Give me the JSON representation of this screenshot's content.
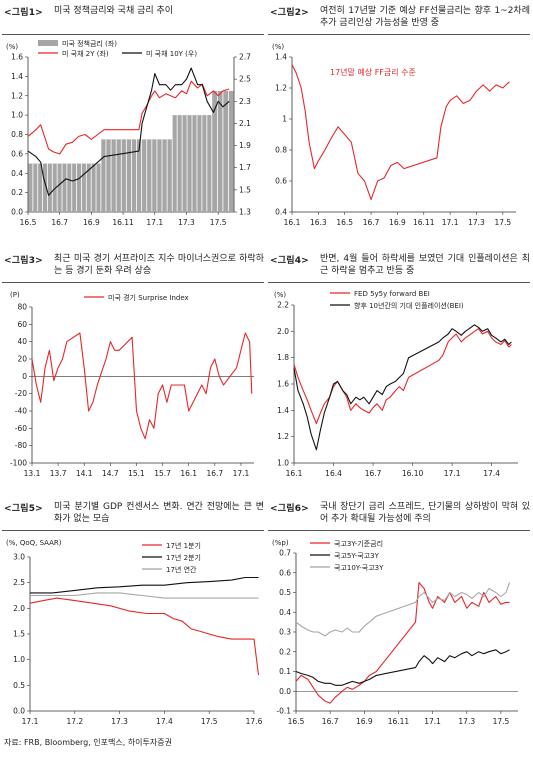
{
  "source": "자료: FRB, Bloomberg, 인포맥스, 하이투자증권",
  "figures": [
    {
      "label": "<그림1>",
      "title": "미국 정책금리와 국채 금리 추이"
    },
    {
      "label": "<그림2>",
      "title": "여전히 17년말 기준 예상 FF선물금리는 향후 1~2차례 추가 금리인상 가능성을 반영 중"
    },
    {
      "label": "<그림3>",
      "title": "최근 미국 경기 서프라이즈 지수 마이너스권으로 하락하는 등 경기 둔화 우려 상승"
    },
    {
      "label": "<그림4>",
      "title": "반면, 4월 들어 하락세를 보였던 기대 인플레이션은 최근 하락을 멈추고 반등 중"
    },
    {
      "label": "<그림5>",
      "title": "미국 분기별 GDP 컨센서스 변화. 연간 전망에는 큰 변화가 없는 모습"
    },
    {
      "label": "<그림6>",
      "title": "국내 장단기 금리 스프레드, 단기물의 상하방이 막혀 있어 추가 확대될 가능성에 주의"
    }
  ],
  "chart_data": [
    {
      "type": "bar+line",
      "unit_left": "(%)",
      "yleft": [
        0.0,
        1.6
      ],
      "yleft_ticks": [
        "0.0",
        "0.2",
        "0.4",
        "0.6",
        "0.8",
        "1.0",
        "1.2",
        "1.4",
        "1.6"
      ],
      "yright": [
        1.3,
        2.7
      ],
      "yright_ticks": [
        "1.3",
        "1.5",
        "1.7",
        "1.9",
        "2.1",
        "2.3",
        "2.5",
        "2.7"
      ],
      "x_ticks": [
        "16.5",
        "16.7",
        "16.9",
        "16.11",
        "17.1",
        "17.3",
        "17.5"
      ],
      "x_range": [
        16.5,
        17.6
      ],
      "series": [
        {
          "name": "미국 정책금리 (좌)",
          "axis": "left",
          "style": "bar",
          "color": "#a6a6a6",
          "x": [
            16.5,
            16.96,
            17.21,
            17.46,
            17.6
          ],
          "values": [
            0.5,
            0.75,
            1.0,
            1.25,
            1.25
          ]
        },
        {
          "name": "미 국채 2Y (좌)",
          "axis": "left",
          "color": "#e8262a",
          "x": [
            16.5,
            16.55,
            16.58,
            16.6,
            16.63,
            16.66,
            16.7,
            16.74,
            16.78,
            16.82,
            16.86,
            16.9,
            16.94,
            16.98,
            17.0,
            17.02,
            17.05,
            17.08,
            17.1,
            17.13,
            17.17,
            17.2,
            17.23,
            17.27,
            17.3,
            17.33,
            17.37,
            17.4,
            17.43,
            17.47,
            17.5,
            17.53,
            17.57
          ],
          "values": [
            0.78,
            0.85,
            0.9,
            0.8,
            0.65,
            0.62,
            0.6,
            0.7,
            0.72,
            0.78,
            0.8,
            0.75,
            0.8,
            0.85,
            0.85,
            1.02,
            1.1,
            1.2,
            1.25,
            1.18,
            1.22,
            1.2,
            1.18,
            1.25,
            1.22,
            1.35,
            1.28,
            1.32,
            1.2,
            1.25,
            1.2,
            1.25,
            1.27
          ]
        },
        {
          "name": "미 국채 10Y (우)",
          "axis": "right",
          "color": "#111111",
          "x": [
            16.5,
            16.55,
            16.58,
            16.6,
            16.63,
            16.66,
            16.7,
            16.74,
            16.78,
            16.82,
            16.86,
            16.9,
            16.94,
            16.98,
            17.0,
            17.02,
            17.05,
            17.08,
            17.1,
            17.13,
            17.17,
            17.2,
            17.23,
            17.27,
            17.3,
            17.33,
            17.37,
            17.4,
            17.43,
            17.47,
            17.5,
            17.53,
            17.57
          ],
          "values": [
            1.85,
            1.8,
            1.75,
            1.6,
            1.45,
            1.5,
            1.55,
            1.6,
            1.58,
            1.6,
            1.65,
            1.7,
            1.75,
            1.8,
            1.85,
            2.1,
            2.25,
            2.4,
            2.55,
            2.45,
            2.45,
            2.4,
            2.45,
            2.45,
            2.5,
            2.6,
            2.45,
            2.45,
            2.3,
            2.2,
            2.3,
            2.25,
            2.3
          ]
        }
      ]
    },
    {
      "type": "line",
      "unit_left": "(%)",
      "ylim": [
        0.4,
        1.4
      ],
      "y_ticks": [
        "0.4",
        "0.6",
        "0.8",
        "1",
        "1.2",
        "1.4"
      ],
      "x_ticks": [
        "16.1",
        "16.3",
        "16.5",
        "16.7",
        "16.9",
        "16.11",
        "17.1",
        "17.3",
        "17.5"
      ],
      "x_range": [
        16.1,
        17.6
      ],
      "annotations": [
        "17년말 예상 FF금리 수준"
      ],
      "series": [
        {
          "name": "17년말 예상 FF금리 수준",
          "color": "#e8262a",
          "x": [
            16.1,
            16.13,
            16.17,
            16.2,
            16.23,
            16.27,
            16.3,
            16.35,
            16.4,
            16.45,
            16.5,
            16.55,
            16.6,
            16.65,
            16.7,
            16.75,
            16.8,
            16.85,
            16.9,
            16.95,
            17.0,
            17.03,
            17.07,
            17.1,
            17.15,
            17.2,
            17.25,
            17.3,
            17.35,
            17.4,
            17.45,
            17.5,
            17.55
          ],
          "values": [
            1.35,
            1.3,
            1.2,
            1.05,
            0.85,
            0.68,
            0.73,
            0.8,
            0.88,
            0.95,
            0.9,
            0.85,
            0.65,
            0.6,
            0.48,
            0.6,
            0.62,
            0.7,
            0.72,
            0.68,
            0.75,
            0.95,
            1.08,
            1.12,
            1.15,
            1.1,
            1.12,
            1.18,
            1.22,
            1.18,
            1.22,
            1.2,
            1.24
          ]
        }
      ]
    },
    {
      "type": "line",
      "unit_left": "(P)",
      "ylim": [
        -100,
        80
      ],
      "y_ticks": [
        "-100",
        "-80",
        "-60",
        "-40",
        "-20",
        "0",
        "20",
        "40",
        "60",
        "80"
      ],
      "x_ticks": [
        "13.1",
        "13.7",
        "14.1",
        "14.7",
        "15.1",
        "15.7",
        "16.1",
        "16.7",
        "17.1"
      ],
      "x_range": [
        13.1,
        17.4
      ],
      "series": [
        {
          "name": "미국 경기 Surprise Index",
          "color": "#e8262a",
          "x": [
            13.1,
            13.2,
            13.3,
            13.4,
            13.5,
            13.6,
            13.7,
            13.8,
            13.9,
            14.0,
            14.1,
            14.2,
            14.3,
            14.4,
            14.5,
            14.6,
            14.7,
            14.8,
            14.9,
            15.0,
            15.1,
            15.2,
            15.3,
            15.4,
            15.5,
            15.6,
            15.7,
            15.8,
            15.9,
            16.0,
            16.1,
            16.2,
            16.3,
            16.4,
            16.5,
            16.6,
            16.7,
            16.8,
            16.9,
            17.0,
            17.1,
            17.2,
            17.3,
            17.35
          ],
          "values": [
            20,
            -10,
            -30,
            10,
            30,
            -5,
            10,
            20,
            40,
            50,
            10,
            -40,
            -30,
            -10,
            5,
            20,
            40,
            30,
            30,
            45,
            -40,
            -60,
            -72,
            -50,
            -60,
            -20,
            -10,
            -30,
            -10,
            -10,
            -40,
            -30,
            -20,
            -10,
            -20,
            10,
            20,
            0,
            -10,
            10,
            30,
            50,
            40,
            -20
          ]
        }
      ]
    },
    {
      "type": "line",
      "unit_left": "(%)",
      "ylim": [
        1.0,
        2.2
      ],
      "y_ticks": [
        "1.0",
        "1.2",
        "1.4",
        "1.6",
        "1.8",
        "2.0",
        "2.2"
      ],
      "x_ticks": [
        "16.1",
        "16.4",
        "16.7",
        "16.10",
        "17.1",
        "17.4"
      ],
      "x_range": [
        16.1,
        17.6
      ],
      "series": [
        {
          "name": "FED 5y5y forward BEI",
          "color": "#e8262a",
          "x": [
            16.1,
            16.13,
            16.17,
            16.2,
            16.23,
            16.27,
            16.3,
            16.33,
            16.37,
            16.4,
            16.43,
            16.47,
            16.5,
            16.53,
            16.57,
            16.6,
            16.63,
            16.67,
            16.7,
            16.73,
            16.77,
            16.8,
            16.83,
            16.87,
            16.9,
            16.93,
            16.97,
            17.0,
            17.03,
            17.07,
            17.1,
            17.13,
            17.17,
            17.2,
            17.23,
            17.27,
            17.3,
            17.33,
            17.37,
            17.4,
            17.43,
            17.47,
            17.5,
            17.53,
            17.55
          ],
          "values": [
            1.75,
            1.65,
            1.55,
            1.48,
            1.4,
            1.3,
            1.38,
            1.45,
            1.5,
            1.58,
            1.62,
            1.55,
            1.5,
            1.4,
            1.45,
            1.42,
            1.4,
            1.38,
            1.42,
            1.45,
            1.4,
            1.48,
            1.5,
            1.55,
            1.58,
            1.55,
            1.65,
            1.78,
            1.82,
            1.92,
            1.95,
            1.98,
            1.92,
            1.95,
            1.97,
            2.0,
            2.02,
            1.98,
            2.0,
            1.95,
            1.92,
            1.9,
            1.93,
            1.88,
            1.9
          ]
        },
        {
          "name": "향후 10년간의 기대 인플레이션(BEI)",
          "color": "#111111",
          "x": [
            16.1,
            16.13,
            16.17,
            16.2,
            16.23,
            16.27,
            16.3,
            16.33,
            16.37,
            16.4,
            16.43,
            16.47,
            16.5,
            16.53,
            16.57,
            16.6,
            16.63,
            16.67,
            16.7,
            16.73,
            16.77,
            16.8,
            16.83,
            16.87,
            16.9,
            16.93,
            16.97,
            17.0,
            17.03,
            17.07,
            17.1,
            17.13,
            17.17,
            17.2,
            17.23,
            17.27,
            17.3,
            17.33,
            17.37,
            17.4,
            17.43,
            17.47,
            17.5,
            17.53,
            17.55
          ],
          "values": [
            1.72,
            1.55,
            1.45,
            1.35,
            1.22,
            1.1,
            1.25,
            1.38,
            1.5,
            1.6,
            1.62,
            1.55,
            1.52,
            1.45,
            1.5,
            1.48,
            1.5,
            1.45,
            1.5,
            1.55,
            1.52,
            1.58,
            1.6,
            1.62,
            1.65,
            1.68,
            1.8,
            1.92,
            1.95,
            1.98,
            2.02,
            2.0,
            1.97,
            2.0,
            2.02,
            2.05,
            2.03,
            2.0,
            2.02,
            1.97,
            1.95,
            1.92,
            1.94,
            1.9,
            1.92
          ]
        }
      ]
    },
    {
      "type": "line",
      "unit_left": "(%, QoQ, SAAR)",
      "ylim": [
        0.0,
        3.0
      ],
      "y_ticks": [
        "0.0",
        "0.5",
        "1.0",
        "1.5",
        "2.0",
        "2.5",
        "3.0"
      ],
      "x_ticks": [
        "17.1",
        "17.2",
        "17.3",
        "17.4",
        "17.5",
        "17.6"
      ],
      "x_range": [
        17.1,
        17.62
      ],
      "series": [
        {
          "name": "17년 1분기",
          "color": "#e8262a",
          "x": [
            17.1,
            17.13,
            17.16,
            17.2,
            17.24,
            17.28,
            17.32,
            17.36,
            17.4,
            17.42,
            17.44,
            17.46,
            17.48,
            17.5,
            17.52,
            17.55,
            17.58,
            17.6,
            17.61
          ],
          "values": [
            2.1,
            2.15,
            2.2,
            2.15,
            2.1,
            2.05,
            1.95,
            1.9,
            1.9,
            1.8,
            1.75,
            1.6,
            1.55,
            1.5,
            1.45,
            1.4,
            1.4,
            1.4,
            0.7
          ]
        },
        {
          "name": "17년 2분기",
          "color": "#111111",
          "x": [
            17.1,
            17.15,
            17.2,
            17.25,
            17.3,
            17.35,
            17.4,
            17.45,
            17.5,
            17.55,
            17.58,
            17.6,
            17.61
          ],
          "values": [
            2.3,
            2.3,
            2.35,
            2.4,
            2.42,
            2.45,
            2.45,
            2.5,
            2.52,
            2.55,
            2.6,
            2.6,
            2.6
          ]
        },
        {
          "name": "17년 연간",
          "color": "#a6a6a6",
          "x": [
            17.1,
            17.15,
            17.2,
            17.25,
            17.3,
            17.35,
            17.4,
            17.45,
            17.5,
            17.55,
            17.61
          ],
          "values": [
            2.25,
            2.25,
            2.25,
            2.3,
            2.3,
            2.25,
            2.2,
            2.2,
            2.2,
            2.2,
            2.2
          ]
        }
      ]
    },
    {
      "type": "line",
      "unit_left": "(%p)",
      "ylim": [
        -0.1,
        0.7
      ],
      "y_ticks": [
        "-0.1",
        "0.0",
        "0.1",
        "0.2",
        "0.3",
        "0.4",
        "0.5",
        "0.6",
        "0.7"
      ],
      "x_ticks": [
        "16.5",
        "16.7",
        "16.9",
        "16.11",
        "17.1",
        "17.3",
        "17.5"
      ],
      "x_range": [
        16.5,
        17.6
      ],
      "series": [
        {
          "name": "국고3Y-기준금리",
          "color": "#e8262a",
          "x": [
            16.5,
            16.53,
            16.57,
            16.6,
            16.63,
            16.67,
            16.7,
            16.73,
            16.77,
            16.8,
            16.83,
            16.87,
            16.9,
            16.93,
            16.97,
            17.0,
            17.02,
            17.05,
            17.08,
            17.1,
            17.13,
            17.17,
            17.2,
            17.23,
            17.27,
            17.3,
            17.33,
            17.37,
            17.4,
            17.43,
            17.47,
            17.5,
            17.53,
            17.55
          ],
          "values": [
            0.05,
            0.08,
            0.06,
            0.02,
            -0.02,
            -0.05,
            -0.06,
            -0.03,
            0.0,
            0.02,
            0.01,
            0.03,
            0.05,
            0.08,
            0.1,
            0.35,
            0.55,
            0.52,
            0.45,
            0.42,
            0.48,
            0.45,
            0.5,
            0.45,
            0.48,
            0.42,
            0.45,
            0.43,
            0.5,
            0.45,
            0.48,
            0.44,
            0.45,
            0.45
          ]
        },
        {
          "name": "국고5Y-국고3Y",
          "color": "#111111",
          "x": [
            16.5,
            16.53,
            16.57,
            16.6,
            16.63,
            16.67,
            16.7,
            16.73,
            16.77,
            16.8,
            16.83,
            16.87,
            16.9,
            16.93,
            16.97,
            17.0,
            17.02,
            17.05,
            17.08,
            17.1,
            17.13,
            17.17,
            17.2,
            17.23,
            17.27,
            17.3,
            17.33,
            17.37,
            17.4,
            17.43,
            17.47,
            17.5,
            17.53,
            17.55
          ],
          "values": [
            0.1,
            0.09,
            0.08,
            0.07,
            0.05,
            0.04,
            0.04,
            0.03,
            0.03,
            0.04,
            0.05,
            0.04,
            0.05,
            0.06,
            0.08,
            0.12,
            0.15,
            0.18,
            0.16,
            0.14,
            0.17,
            0.15,
            0.18,
            0.17,
            0.19,
            0.2,
            0.18,
            0.2,
            0.19,
            0.2,
            0.21,
            0.19,
            0.2,
            0.21
          ]
        },
        {
          "name": "국고10Y-국고3Y",
          "color": "#a6a6a6",
          "x": [
            16.5,
            16.53,
            16.57,
            16.6,
            16.63,
            16.67,
            16.7,
            16.73,
            16.77,
            16.8,
            16.83,
            16.87,
            16.9,
            16.93,
            16.97,
            17.0,
            17.02,
            17.05,
            17.08,
            17.1,
            17.13,
            17.17,
            17.2,
            17.23,
            17.27,
            17.3,
            17.33,
            17.37,
            17.4,
            17.43,
            17.47,
            17.5,
            17.53,
            17.55
          ],
          "values": [
            0.35,
            0.33,
            0.31,
            0.3,
            0.3,
            0.28,
            0.3,
            0.31,
            0.3,
            0.32,
            0.3,
            0.3,
            0.33,
            0.35,
            0.38,
            0.45,
            0.48,
            0.5,
            0.47,
            0.45,
            0.47,
            0.46,
            0.5,
            0.48,
            0.5,
            0.49,
            0.47,
            0.5,
            0.48,
            0.52,
            0.5,
            0.48,
            0.5,
            0.55
          ]
        }
      ]
    }
  ]
}
